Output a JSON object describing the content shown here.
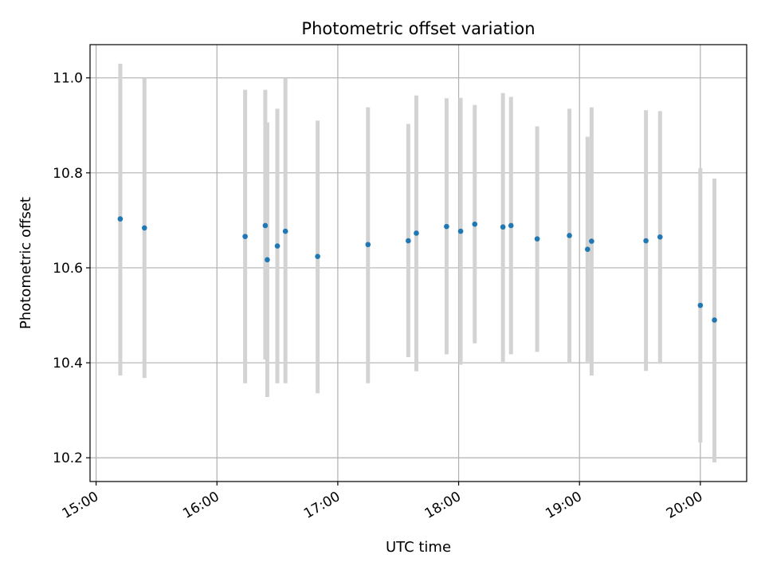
{
  "chart_data": {
    "type": "scatter",
    "title": "Photometric offset variation",
    "xlabel": "UTC time",
    "ylabel": "Photometric offset",
    "x_ticks": [
      "15:00",
      "16:00",
      "17:00",
      "18:00",
      "19:00",
      "20:00"
    ],
    "y_ticks": [
      "10.2",
      "10.4",
      "10.6",
      "10.8",
      "11.0"
    ],
    "xlim": [
      "14:57",
      "20:23"
    ],
    "ylim": [
      10.15,
      11.07
    ],
    "grid": true,
    "marker_color": "#1f77b4",
    "errorbar_color": "#d3d3d3",
    "points": [
      {
        "t": "15:12",
        "y": 10.703,
        "lo": 10.373,
        "hi": 11.03
      },
      {
        "t": "15:24",
        "y": 10.684,
        "lo": 10.368,
        "hi": 11.0
      },
      {
        "t": "16:14",
        "y": 10.666,
        "lo": 10.357,
        "hi": 10.975
      },
      {
        "t": "16:24",
        "y": 10.689,
        "lo": 10.407,
        "hi": 10.975
      },
      {
        "t": "16:25",
        "y": 10.617,
        "lo": 10.328,
        "hi": 10.906
      },
      {
        "t": "16:30",
        "y": 10.646,
        "lo": 10.357,
        "hi": 10.935
      },
      {
        "t": "16:34",
        "y": 10.677,
        "lo": 10.357,
        "hi": 11.0
      },
      {
        "t": "16:50",
        "y": 10.624,
        "lo": 10.336,
        "hi": 10.91
      },
      {
        "t": "17:15",
        "y": 10.649,
        "lo": 10.357,
        "hi": 10.938
      },
      {
        "t": "17:35",
        "y": 10.657,
        "lo": 10.412,
        "hi": 10.903
      },
      {
        "t": "17:39",
        "y": 10.673,
        "lo": 10.382,
        "hi": 10.963
      },
      {
        "t": "17:54",
        "y": 10.687,
        "lo": 10.418,
        "hi": 10.957
      },
      {
        "t": "18:01",
        "y": 10.677,
        "lo": 10.396,
        "hi": 10.958
      },
      {
        "t": "18:08",
        "y": 10.692,
        "lo": 10.441,
        "hi": 10.943
      },
      {
        "t": "18:22",
        "y": 10.686,
        "lo": 10.402,
        "hi": 10.968
      },
      {
        "t": "18:26",
        "y": 10.689,
        "lo": 10.418,
        "hi": 10.96
      },
      {
        "t": "18:39",
        "y": 10.661,
        "lo": 10.423,
        "hi": 10.898
      },
      {
        "t": "18:55",
        "y": 10.668,
        "lo": 10.4,
        "hi": 10.935
      },
      {
        "t": "19:04",
        "y": 10.639,
        "lo": 10.402,
        "hi": 10.876
      },
      {
        "t": "19:06",
        "y": 10.656,
        "lo": 10.373,
        "hi": 10.938
      },
      {
        "t": "19:33",
        "y": 10.657,
        "lo": 10.383,
        "hi": 10.932
      },
      {
        "t": "19:40",
        "y": 10.665,
        "lo": 10.398,
        "hi": 10.93
      },
      {
        "t": "20:00",
        "y": 10.521,
        "lo": 10.232,
        "hi": 10.81
      },
      {
        "t": "20:07",
        "y": 10.49,
        "lo": 10.19,
        "hi": 10.788
      }
    ]
  }
}
